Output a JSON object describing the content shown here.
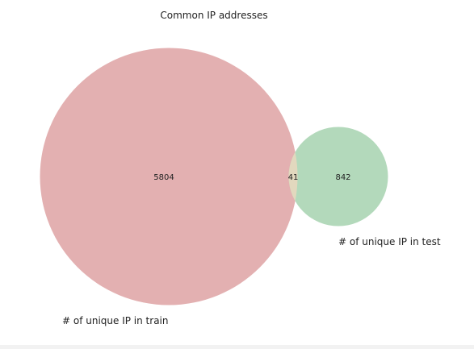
{
  "chart_data": {
    "type": "venn",
    "title": "Common IP addresses",
    "sets": [
      {
        "name": "# of unique IP in train",
        "only_count": 5804,
        "color": "#e3b0b1"
      },
      {
        "name": "# of unique IP in test",
        "only_count": 842,
        "color": "#b3d9bb"
      }
    ],
    "intersection": {
      "count": 41,
      "color": "#e2d8be"
    }
  }
}
